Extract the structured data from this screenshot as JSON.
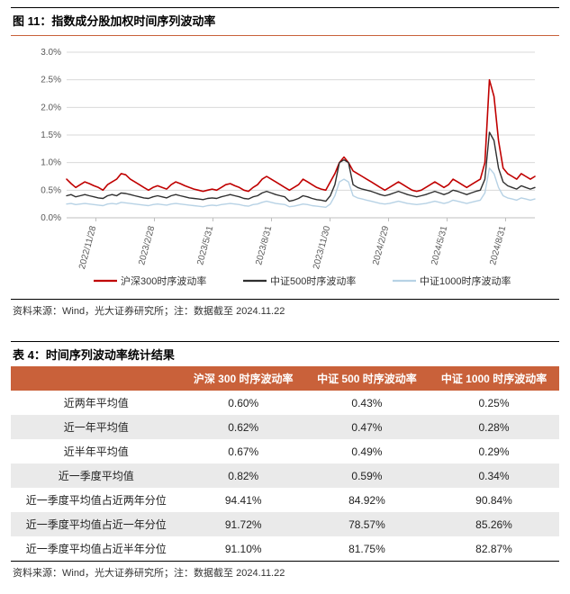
{
  "figure": {
    "title": "图 11：指数成分股加权时间序列波动率",
    "source": "资料来源：Wind，光大证券研究所；注：数据截至 2024.11.22",
    "chart": {
      "type": "line",
      "background_color": "#ffffff",
      "grid_color": "#d9d9d9",
      "y": {
        "min": 0.0,
        "max": 3.0,
        "step": 0.5,
        "format_suffix": "%",
        "label_fontsize": 10
      },
      "x": {
        "labels": [
          "2022/11/28",
          "2023/2/28",
          "2023/5/31",
          "2023/8/31",
          "2023/11/30",
          "2024/2/29",
          "2024/5/31",
          "2024/8/31"
        ],
        "rotation_deg": -75,
        "label_fontsize": 10
      },
      "series": [
        {
          "name": "沪深300时序波动率",
          "color": "#c00000",
          "width": 1.6,
          "values": [
            0.7,
            0.62,
            0.55,
            0.6,
            0.65,
            0.62,
            0.58,
            0.55,
            0.5,
            0.6,
            0.65,
            0.7,
            0.8,
            0.78,
            0.7,
            0.65,
            0.6,
            0.55,
            0.5,
            0.55,
            0.58,
            0.55,
            0.52,
            0.6,
            0.65,
            0.62,
            0.58,
            0.55,
            0.52,
            0.5,
            0.48,
            0.5,
            0.52,
            0.5,
            0.55,
            0.6,
            0.62,
            0.58,
            0.55,
            0.5,
            0.48,
            0.55,
            0.6,
            0.7,
            0.75,
            0.7,
            0.65,
            0.6,
            0.55,
            0.5,
            0.55,
            0.6,
            0.7,
            0.65,
            0.6,
            0.55,
            0.52,
            0.5,
            0.65,
            0.8,
            1.0,
            1.1,
            1.0,
            0.85,
            0.8,
            0.75,
            0.7,
            0.65,
            0.6,
            0.55,
            0.5,
            0.55,
            0.6,
            0.65,
            0.6,
            0.55,
            0.5,
            0.48,
            0.5,
            0.55,
            0.6,
            0.65,
            0.6,
            0.55,
            0.6,
            0.7,
            0.65,
            0.6,
            0.55,
            0.6,
            0.65,
            0.7,
            1.0,
            2.5,
            2.2,
            1.4,
            0.9,
            0.8,
            0.75,
            0.7,
            0.8,
            0.75,
            0.7,
            0.75
          ]
        },
        {
          "name": "中证500时序波动率",
          "color": "#2f2f2f",
          "width": 1.4,
          "values": [
            0.4,
            0.42,
            0.38,
            0.4,
            0.42,
            0.4,
            0.38,
            0.36,
            0.35,
            0.4,
            0.42,
            0.4,
            0.45,
            0.44,
            0.42,
            0.4,
            0.38,
            0.36,
            0.35,
            0.38,
            0.4,
            0.38,
            0.36,
            0.4,
            0.42,
            0.4,
            0.38,
            0.36,
            0.35,
            0.34,
            0.33,
            0.35,
            0.36,
            0.35,
            0.38,
            0.4,
            0.42,
            0.4,
            0.38,
            0.35,
            0.34,
            0.38,
            0.4,
            0.45,
            0.48,
            0.45,
            0.42,
            0.4,
            0.38,
            0.3,
            0.32,
            0.35,
            0.4,
            0.38,
            0.35,
            0.33,
            0.32,
            0.3,
            0.4,
            0.6,
            1.0,
            1.05,
            1.0,
            0.6,
            0.55,
            0.52,
            0.5,
            0.48,
            0.45,
            0.42,
            0.4,
            0.42,
            0.45,
            0.48,
            0.45,
            0.42,
            0.4,
            0.38,
            0.4,
            0.42,
            0.45,
            0.48,
            0.45,
            0.42,
            0.45,
            0.5,
            0.48,
            0.45,
            0.42,
            0.45,
            0.48,
            0.5,
            0.7,
            1.55,
            1.4,
            0.9,
            0.65,
            0.58,
            0.55,
            0.52,
            0.58,
            0.55,
            0.52,
            0.55
          ]
        },
        {
          "name": "中证1000时序波动率",
          "color": "#b7d2e5",
          "width": 1.4,
          "values": [
            0.25,
            0.26,
            0.24,
            0.25,
            0.26,
            0.25,
            0.24,
            0.23,
            0.22,
            0.25,
            0.26,
            0.25,
            0.28,
            0.27,
            0.26,
            0.25,
            0.24,
            0.23,
            0.22,
            0.24,
            0.25,
            0.24,
            0.23,
            0.25,
            0.26,
            0.25,
            0.24,
            0.23,
            0.22,
            0.21,
            0.2,
            0.22,
            0.23,
            0.22,
            0.24,
            0.25,
            0.26,
            0.25,
            0.24,
            0.22,
            0.21,
            0.24,
            0.25,
            0.28,
            0.3,
            0.28,
            0.26,
            0.25,
            0.24,
            0.2,
            0.21,
            0.23,
            0.25,
            0.24,
            0.22,
            0.21,
            0.2,
            0.19,
            0.25,
            0.4,
            0.65,
            0.7,
            0.65,
            0.4,
            0.36,
            0.34,
            0.32,
            0.3,
            0.28,
            0.26,
            0.25,
            0.26,
            0.28,
            0.3,
            0.28,
            0.26,
            0.25,
            0.24,
            0.25,
            0.26,
            0.28,
            0.3,
            0.28,
            0.26,
            0.28,
            0.32,
            0.3,
            0.28,
            0.26,
            0.28,
            0.3,
            0.32,
            0.45,
            0.9,
            0.8,
            0.55,
            0.4,
            0.36,
            0.34,
            0.32,
            0.36,
            0.34,
            0.32,
            0.34
          ]
        }
      ],
      "legend": {
        "position": "bottom",
        "fontsize": 11
      }
    }
  },
  "table": {
    "title": "表 4：时间序列波动率统计结果",
    "source": "资料来源：Wind，光大证券研究所；注：数据截至 2024.11.22",
    "header_bg": "#c9613a",
    "header_color": "#ffffff",
    "row_alt_bg": "#eaeaea",
    "fontsize": 12,
    "columns": [
      "",
      "沪深 300 时序波动率",
      "中证 500 时序波动率",
      "中证 1000 时序波动率"
    ],
    "rows": [
      [
        "近两年平均值",
        "0.60%",
        "0.43%",
        "0.25%"
      ],
      [
        "近一年平均值",
        "0.62%",
        "0.47%",
        "0.28%"
      ],
      [
        "近半年平均值",
        "0.67%",
        "0.49%",
        "0.29%"
      ],
      [
        "近一季度平均值",
        "0.82%",
        "0.59%",
        "0.34%"
      ],
      [
        "近一季度平均值占近两年分位",
        "94.41%",
        "84.92%",
        "90.84%"
      ],
      [
        "近一季度平均值占近一年分位",
        "91.72%",
        "78.57%",
        "85.26%"
      ],
      [
        "近一季度平均值占近半年分位",
        "91.10%",
        "81.75%",
        "82.87%"
      ]
    ]
  }
}
